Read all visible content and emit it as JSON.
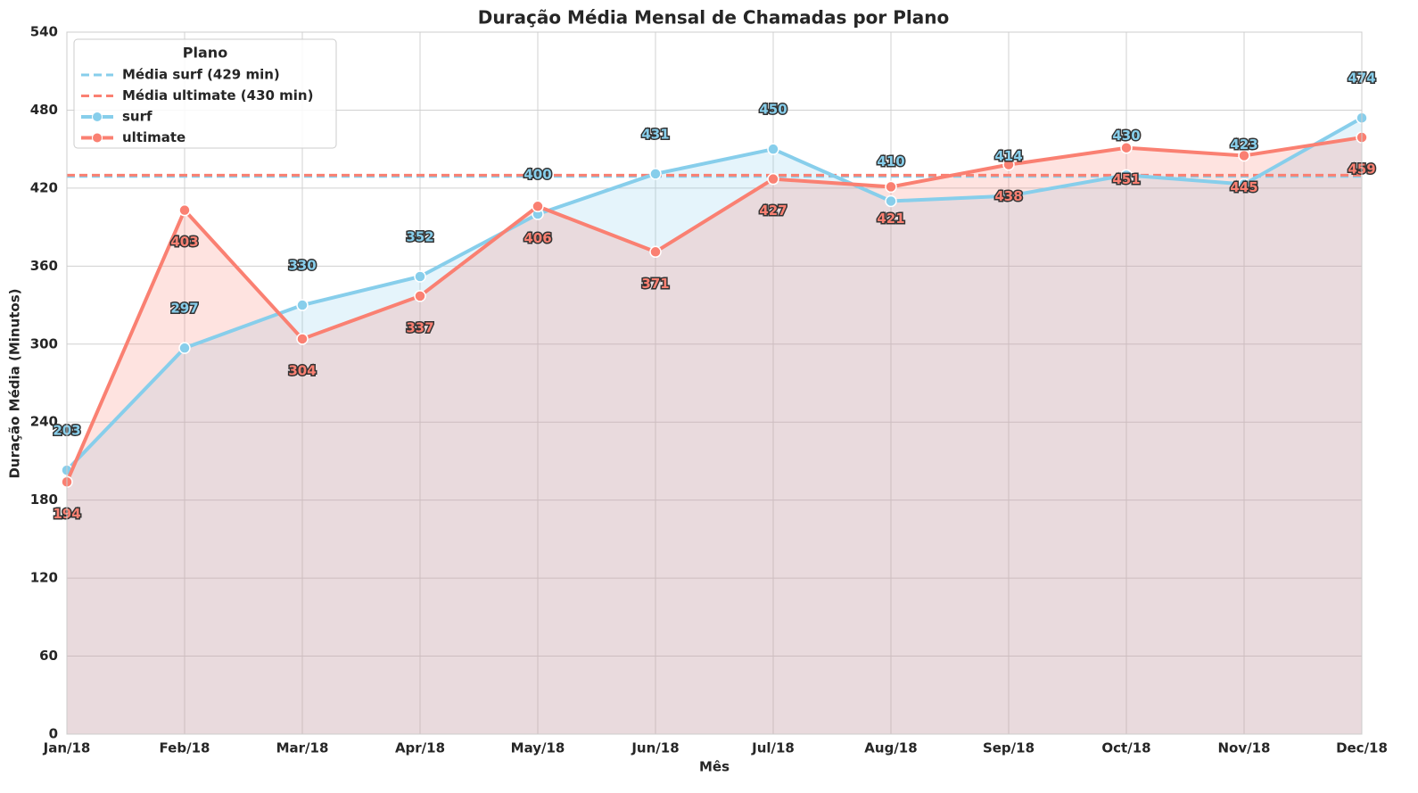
{
  "chart_data": {
    "type": "line",
    "title": "Duração Média Mensal de Chamadas por Plano",
    "x_label": "Mês",
    "y_label": "Duração Média (Minutos)",
    "categories": [
      "Jan/18",
      "Feb/18",
      "Mar/18",
      "Apr/18",
      "May/18",
      "Jun/18",
      "Jul/18",
      "Aug/18",
      "Sep/18",
      "Oct/18",
      "Nov/18",
      "Dec/18"
    ],
    "series": [
      {
        "name": "surf",
        "color": "#87ceeb",
        "values": [
          203,
          297,
          330,
          352,
          400,
          431,
          450,
          410,
          414,
          430,
          423,
          474
        ]
      },
      {
        "name": "ultimate",
        "color": "#fa8072",
        "values": [
          194,
          403,
          304,
          337,
          406,
          371,
          427,
          421,
          438,
          451,
          445,
          459
        ]
      }
    ],
    "reference_lines": [
      {
        "name": "Média surf (429 min)",
        "value": 429,
        "color": "#87ceeb"
      },
      {
        "name": "Média ultimate (430 min)",
        "value": 430,
        "color": "#fa8072"
      }
    ],
    "legend_title": "Plano",
    "legend": "upper left",
    "ylim": [
      0,
      540
    ],
    "yticks": [
      0,
      60,
      120,
      180,
      240,
      300,
      360,
      420,
      480,
      540
    ],
    "grid": true
  }
}
